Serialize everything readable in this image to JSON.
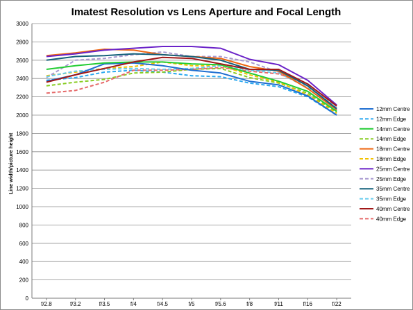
{
  "chart_data": {
    "type": "line",
    "title": "Imatest Resolution vs Lens Aperture and Focal Length",
    "xlabel": "",
    "ylabel": "Line width/picture height",
    "ylim": [
      0,
      3000
    ],
    "y_ticks": [
      "0",
      "200",
      "400",
      "600",
      "800",
      "1000",
      "1200",
      "1400",
      "1600",
      "1800",
      "2000",
      "2200",
      "2400",
      "2600",
      "2800",
      "3000"
    ],
    "categories": [
      "f/2.8",
      "f/3.2",
      "f/3.5",
      "f/4",
      "f/4.5",
      "f/5",
      "f/5.6",
      "f/8",
      "f/11",
      "f/16",
      "f/22"
    ],
    "grid": true,
    "legend_position": "right",
    "series": [
      {
        "name": "12mm Centre",
        "color": "#1f6fd1",
        "dash": false,
        "values": [
          2370,
          2440,
          2560,
          2570,
          2540,
          2490,
          2460,
          2370,
          2330,
          2210,
          2000
        ]
      },
      {
        "name": "12mm Edge",
        "color": "#2aa8f0",
        "dash": true,
        "values": [
          2380,
          2410,
          2470,
          2490,
          2470,
          2430,
          2420,
          2350,
          2310,
          2200,
          2000
        ]
      },
      {
        "name": "14mm Centre",
        "color": "#22cc33",
        "dash": false,
        "values": [
          2500,
          2540,
          2570,
          2580,
          2580,
          2560,
          2550,
          2460,
          2370,
          2260,
          2040
        ]
      },
      {
        "name": "14mm Edge",
        "color": "#88cc22",
        "dash": true,
        "values": [
          2320,
          2360,
          2390,
          2460,
          2470,
          2500,
          2510,
          2410,
          2350,
          2240,
          2030
        ]
      },
      {
        "name": "18mm Centre",
        "color": "#ee6611",
        "dash": false,
        "values": [
          2650,
          2680,
          2720,
          2710,
          2660,
          2640,
          2620,
          2530,
          2480,
          2290,
          2060
        ]
      },
      {
        "name": "18mm Edge",
        "color": "#f2c200",
        "dash": true,
        "values": [
          2430,
          2470,
          2510,
          2530,
          2580,
          2540,
          2540,
          2440,
          2360,
          2220,
          2020
        ]
      },
      {
        "name": "25mm Centre",
        "color": "#6a22c8",
        "dash": false,
        "values": [
          2640,
          2670,
          2710,
          2730,
          2750,
          2750,
          2730,
          2610,
          2550,
          2380,
          2110
        ]
      },
      {
        "name": "25mm Edge",
        "color": "#a898d0",
        "dash": true,
        "values": [
          2410,
          2600,
          2620,
          2660,
          2690,
          2640,
          2640,
          2580,
          2470,
          2320,
          2080
        ]
      },
      {
        "name": "35mm Centre",
        "color": "#14607a",
        "dash": false,
        "values": [
          2600,
          2640,
          2650,
          2670,
          2660,
          2640,
          2600,
          2500,
          2490,
          2320,
          2070
        ]
      },
      {
        "name": "35mm Edge",
        "color": "#66ccee",
        "dash": true,
        "values": [
          2420,
          2480,
          2500,
          2510,
          2500,
          2510,
          2540,
          2490,
          2460,
          2300,
          2050
        ]
      },
      {
        "name": "40mm Centre",
        "color": "#a01818",
        "dash": false,
        "values": [
          2360,
          2440,
          2510,
          2580,
          2630,
          2620,
          2560,
          2500,
          2500,
          2340,
          2100
        ]
      },
      {
        "name": "40mm Edge",
        "color": "#e66a6a",
        "dash": true,
        "values": [
          2240,
          2270,
          2360,
          2490,
          2490,
          2500,
          2520,
          2480,
          2450,
          2340,
          2100
        ]
      }
    ]
  }
}
